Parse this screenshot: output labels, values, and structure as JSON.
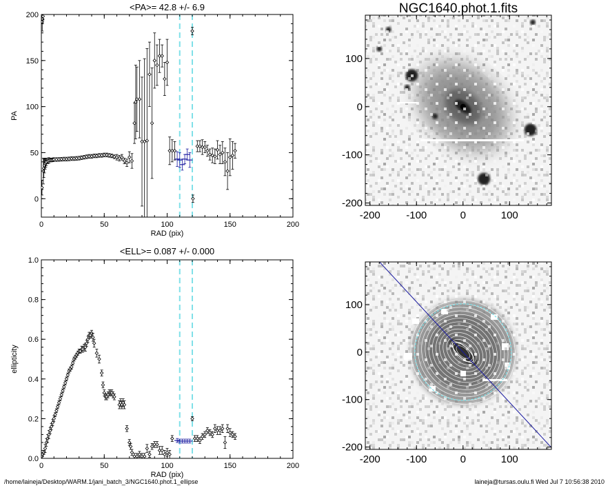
{
  "colors": {
    "axes": "#000000",
    "points": "#000000",
    "highlight": "#1a1aa0",
    "dashed_lines": "#7fe0e8",
    "ellipse_contours": "#ffffff",
    "outer_contour": "#7fe0e8",
    "major_axis_line": "#1a1aa0"
  },
  "footer": {
    "path": "/home/laineja/Desktop/WARM.1/jani_batch_3/NGC1640.phot.1_ellipse",
    "user_date": "laineja@tursas.oulu.fi  Wed Jul  7 10:56:38 2010"
  },
  "chart_data": [
    {
      "type": "scatter",
      "title": "<PA>=  42.8 +/-   6.9",
      "xlabel": "RAD (pix)",
      "ylabel": "PA",
      "xlim": [
        0,
        200
      ],
      "ylim": [
        -20,
        200
      ],
      "xticks": [
        0,
        50,
        100,
        150,
        200
      ],
      "yticks": [
        0,
        50,
        100,
        150,
        200
      ],
      "vlines": [
        110,
        120
      ],
      "highlight_range": [
        107,
        118
      ],
      "points": [
        [
          0.5,
          12,
          8
        ],
        [
          0.7,
          192,
          10
        ],
        [
          1,
          195,
          5
        ],
        [
          1.3,
          198,
          4
        ],
        [
          1.6,
          30,
          14
        ],
        [
          2,
          33,
          10
        ],
        [
          2.5,
          36,
          8
        ],
        [
          3,
          38,
          6
        ],
        [
          3.5,
          39,
          5
        ],
        [
          4,
          40,
          4
        ],
        [
          5,
          41,
          3
        ],
        [
          6,
          41.5,
          3
        ],
        [
          7,
          42,
          2
        ],
        [
          8,
          42,
          2
        ],
        [
          9,
          42.2,
          2
        ],
        [
          10,
          42.5,
          2
        ],
        [
          12,
          42.5,
          2
        ],
        [
          14,
          42.6,
          2
        ],
        [
          16,
          42.8,
          2
        ],
        [
          18,
          43,
          2
        ],
        [
          20,
          43,
          2
        ],
        [
          22,
          43.2,
          2
        ],
        [
          24,
          43.5,
          2
        ],
        [
          26,
          43.5,
          2
        ],
        [
          28,
          43.8,
          2
        ],
        [
          30,
          44,
          2
        ],
        [
          32,
          44.5,
          2
        ],
        [
          34,
          45,
          2
        ],
        [
          36,
          45.5,
          2
        ],
        [
          38,
          46,
          2
        ],
        [
          40,
          46,
          2
        ],
        [
          42,
          46.5,
          2
        ],
        [
          44,
          46.5,
          2
        ],
        [
          46,
          47,
          2
        ],
        [
          48,
          47,
          2
        ],
        [
          50,
          47.5,
          2
        ],
        [
          52,
          47.5,
          2
        ],
        [
          54,
          47,
          2
        ],
        [
          56,
          46.5,
          2
        ],
        [
          58,
          45.5,
          2
        ],
        [
          60,
          45,
          3
        ],
        [
          62,
          44,
          3
        ],
        [
          64,
          45,
          3
        ],
        [
          66,
          41,
          3
        ],
        [
          68,
          39,
          4
        ],
        [
          70,
          45,
          6
        ],
        [
          72,
          41,
          8
        ],
        [
          74,
          82,
          22
        ],
        [
          75,
          105,
          40
        ],
        [
          76,
          108,
          35
        ],
        [
          78,
          108,
          42
        ],
        [
          80,
          62,
          70
        ],
        [
          82,
          62,
          90
        ],
        [
          84,
          63,
          100
        ],
        [
          86,
          135,
          35
        ],
        [
          88,
          82,
          60
        ],
        [
          90,
          150,
          30
        ],
        [
          92,
          145,
          22
        ],
        [
          94,
          155,
          18
        ],
        [
          96,
          155,
          12
        ],
        [
          98,
          130,
          18
        ],
        [
          100,
          148,
          25
        ],
        [
          102,
          52,
          15
        ],
        [
          104,
          52,
          12
        ],
        [
          106,
          52,
          10
        ],
        [
          108,
          43,
          8
        ],
        [
          110,
          42,
          8
        ],
        [
          112,
          37,
          6
        ],
        [
          114,
          43,
          5
        ],
        [
          116,
          48,
          6
        ],
        [
          118,
          42,
          8
        ],
        [
          120,
          182,
          4
        ],
        [
          120.5,
          0,
          4
        ],
        [
          124,
          57,
          6
        ],
        [
          126,
          57,
          6
        ],
        [
          128,
          56,
          8
        ],
        [
          130,
          56,
          6
        ],
        [
          132,
          52,
          6
        ],
        [
          134,
          48,
          6
        ],
        [
          136,
          47,
          8
        ],
        [
          138,
          46,
          8
        ],
        [
          140,
          53,
          10
        ],
        [
          142,
          48,
          10
        ],
        [
          144,
          50,
          12
        ],
        [
          146,
          40,
          15
        ],
        [
          148,
          30,
          20
        ],
        [
          150,
          45,
          20
        ],
        [
          152,
          47,
          15
        ],
        [
          154,
          52,
          8
        ]
      ]
    },
    {
      "type": "scatter",
      "title": "<ELL>= 0.087 +/-  0.000",
      "xlabel": "RAD (pix)",
      "ylabel": "ellipticity",
      "xlim": [
        0,
        200
      ],
      "ylim": [
        0,
        1.0
      ],
      "xticks": [
        0,
        50,
        100,
        150,
        200
      ],
      "yticks": [
        0.0,
        0.2,
        0.4,
        0.6,
        0.8,
        1.0
      ],
      "vlines": [
        110,
        120
      ],
      "highlight_range": [
        107,
        118
      ],
      "points": [
        [
          0.5,
          0.01,
          0.01
        ],
        [
          1,
          0.02,
          0.01
        ],
        [
          2,
          0.03,
          0.01
        ],
        [
          3,
          0.05,
          0.02
        ],
        [
          4,
          0.08,
          0.02
        ],
        [
          5,
          0.1,
          0.02
        ],
        [
          6,
          0.12,
          0.02
        ],
        [
          7,
          0.14,
          0.015
        ],
        [
          8,
          0.16,
          0.015
        ],
        [
          9,
          0.18,
          0.015
        ],
        [
          10,
          0.2,
          0.015
        ],
        [
          11,
          0.22,
          0.01
        ],
        [
          12,
          0.24,
          0.01
        ],
        [
          13,
          0.26,
          0.01
        ],
        [
          14,
          0.28,
          0.01
        ],
        [
          15,
          0.3,
          0.01
        ],
        [
          16,
          0.32,
          0.01
        ],
        [
          17,
          0.34,
          0.01
        ],
        [
          18,
          0.36,
          0.01
        ],
        [
          19,
          0.38,
          0.01
        ],
        [
          20,
          0.4,
          0.01
        ],
        [
          21,
          0.42,
          0.01
        ],
        [
          22,
          0.44,
          0.01
        ],
        [
          23,
          0.45,
          0.01
        ],
        [
          24,
          0.46,
          0.01
        ],
        [
          25,
          0.48,
          0.01
        ],
        [
          26,
          0.5,
          0.01
        ],
        [
          27,
          0.51,
          0.01
        ],
        [
          28,
          0.52,
          0.01
        ],
        [
          29,
          0.53,
          0.01
        ],
        [
          30,
          0.54,
          0.01
        ],
        [
          31,
          0.54,
          0.01
        ],
        [
          32,
          0.55,
          0.015
        ],
        [
          33,
          0.55,
          0.015
        ],
        [
          34,
          0.56,
          0.015
        ],
        [
          35,
          0.56,
          0.02
        ],
        [
          36,
          0.58,
          0.015
        ],
        [
          37,
          0.6,
          0.015
        ],
        [
          38,
          0.62,
          0.015
        ],
        [
          39,
          0.62,
          0.015
        ],
        [
          40,
          0.63,
          0.015
        ],
        [
          41,
          0.61,
          0.02
        ],
        [
          42,
          0.58,
          0.02
        ],
        [
          44,
          0.53,
          0.02
        ],
        [
          46,
          0.5,
          0.02
        ],
        [
          48,
          0.43,
          0.015
        ],
        [
          49,
          0.37,
          0.015
        ],
        [
          50,
          0.33,
          0.015
        ],
        [
          51,
          0.31,
          0.015
        ],
        [
          52,
          0.31,
          0.015
        ],
        [
          53,
          0.32,
          0.015
        ],
        [
          54,
          0.33,
          0.015
        ],
        [
          55,
          0.33,
          0.015
        ],
        [
          56,
          0.33,
          0.015
        ],
        [
          57,
          0.32,
          0.015
        ],
        [
          58,
          0.31,
          0.015
        ],
        [
          62,
          0.27,
          0.02
        ],
        [
          63,
          0.28,
          0.02
        ],
        [
          64,
          0.27,
          0.02
        ],
        [
          65,
          0.28,
          0.02
        ],
        [
          66,
          0.27,
          0.02
        ],
        [
          68,
          0.15,
          0.015
        ],
        [
          70,
          0.08,
          0.015
        ],
        [
          71,
          0.06,
          0.015
        ],
        [
          72,
          0.03,
          0.015
        ],
        [
          74,
          0.01,
          0.015
        ],
        [
          76,
          0.01,
          0.015
        ],
        [
          78,
          0.02,
          0.015
        ],
        [
          80,
          0.01,
          0.015
        ],
        [
          82,
          0.01,
          0.015
        ],
        [
          84,
          0.05,
          0.02
        ],
        [
          86,
          0.02,
          0.015
        ],
        [
          88,
          0.06,
          0.015
        ],
        [
          90,
          0.07,
          0.015
        ],
        [
          92,
          0.07,
          0.015
        ],
        [
          94,
          0.04,
          0.02
        ],
        [
          96,
          0.04,
          0.02
        ],
        [
          98,
          0.02,
          0.02
        ],
        [
          100,
          0.03,
          0.02
        ],
        [
          102,
          0.02,
          0.02
        ],
        [
          104,
          0.1,
          0.015
        ],
        [
          108,
          0.09,
          0.01
        ],
        [
          110,
          0.087,
          0.01
        ],
        [
          112,
          0.087,
          0.01
        ],
        [
          114,
          0.087,
          0.01
        ],
        [
          116,
          0.087,
          0.01
        ],
        [
          118,
          0.087,
          0.01
        ],
        [
          120,
          0.2,
          0.01
        ],
        [
          122,
          0.1,
          0.015
        ],
        [
          124,
          0.1,
          0.015
        ],
        [
          126,
          0.09,
          0.015
        ],
        [
          128,
          0.11,
          0.015
        ],
        [
          130,
          0.12,
          0.015
        ],
        [
          132,
          0.14,
          0.015
        ],
        [
          134,
          0.13,
          0.015
        ],
        [
          136,
          0.12,
          0.015
        ],
        [
          138,
          0.15,
          0.02
        ],
        [
          140,
          0.14,
          0.02
        ],
        [
          142,
          0.14,
          0.02
        ],
        [
          144,
          0.15,
          0.02
        ],
        [
          146,
          0.08,
          0.03
        ],
        [
          148,
          0.15,
          0.02
        ],
        [
          150,
          0.13,
          0.02
        ],
        [
          152,
          0.12,
          0.015
        ],
        [
          154,
          0.11,
          0.015
        ]
      ]
    },
    {
      "type": "heatmap",
      "title": "NGC1640.phot.1.fits",
      "xlim": [
        -210,
        190
      ],
      "ylim": [
        -205,
        190
      ],
      "xticks": [
        -200,
        -100,
        0,
        100
      ],
      "yticks": [
        -200,
        -100,
        0,
        100
      ],
      "galaxy": {
        "center": [
          0,
          0
        ],
        "pa_deg": 42.8
      },
      "stars": [
        [
          -110,
          65
        ],
        [
          145,
          -48
        ],
        [
          45,
          -150
        ],
        [
          -60,
          -20
        ],
        [
          -120,
          40
        ],
        [
          -180,
          120
        ],
        [
          150,
          175
        ],
        [
          -160,
          160
        ]
      ]
    },
    {
      "type": "heatmap",
      "xlim": [
        -210,
        190
      ],
      "ylim": [
        -205,
        190
      ],
      "xticks": [
        -200,
        -100,
        0,
        100
      ],
      "yticks": [
        -200,
        -100,
        0,
        100
      ],
      "major_axis_pa_deg": 42.8,
      "outer_ellipse_radius": 110
    }
  ]
}
